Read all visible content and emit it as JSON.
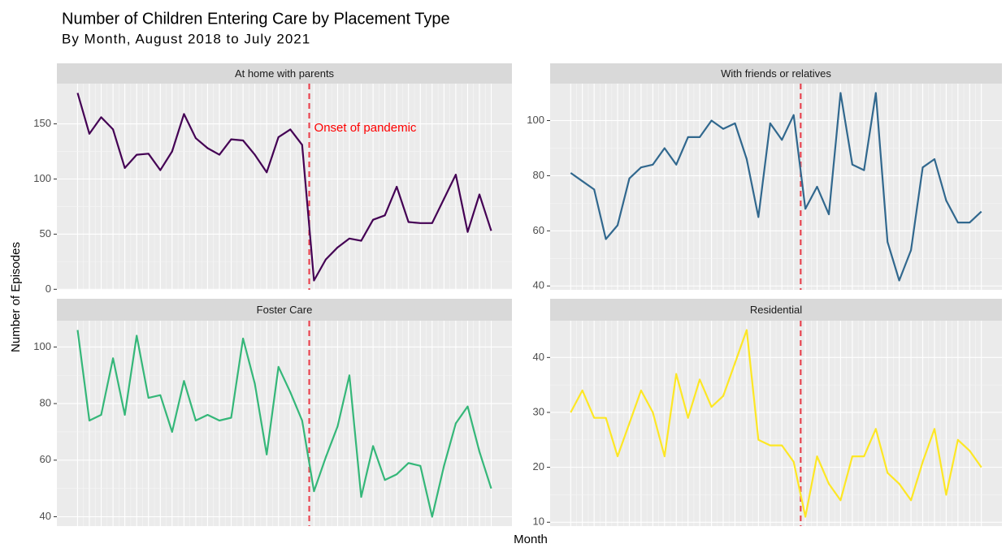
{
  "title": "Number of Children Entering Care by Placement Type",
  "subtitle": "By Month, August 2018 to July 2021",
  "xlabel": "Month",
  "ylabel": "Number of Episodes",
  "chart_data": [
    {
      "type": "line",
      "title": "At home with parents",
      "color": "#440154",
      "categories": [
        null,
        null,
        null,
        null,
        null,
        null,
        null,
        null,
        null,
        null,
        null,
        null,
        null,
        null,
        null,
        null,
        null,
        null,
        null,
        null,
        null,
        null,
        null,
        null,
        null,
        null,
        null,
        null,
        null,
        null,
        null,
        null,
        null,
        null,
        null,
        null
      ],
      "values": [
        178,
        141,
        156,
        145,
        110,
        122,
        123,
        108,
        125,
        159,
        137,
        128,
        122,
        136,
        135,
        122,
        106,
        138,
        145,
        131,
        8,
        27,
        38,
        46,
        44,
        63,
        67,
        93,
        61,
        60,
        60,
        82,
        104,
        52,
        86,
        53
      ],
      "ylim": [
        -0.5,
        186.5
      ],
      "yticks": [
        0,
        50,
        100,
        150
      ],
      "grid": true,
      "vline": 19.6,
      "vline_color": "#e8434f",
      "annotation": "Onset of pandemic",
      "annotation_color": "#ff0000"
    },
    {
      "type": "line",
      "title": "With friends or relatives",
      "color": "#31688e",
      "categories": [
        null,
        null,
        null,
        null,
        null,
        null,
        null,
        null,
        null,
        null,
        null,
        null,
        null,
        null,
        null,
        null,
        null,
        null,
        null,
        null,
        null,
        null,
        null,
        null,
        null,
        null,
        null,
        null,
        null,
        null,
        null,
        null,
        null,
        null,
        null,
        null
      ],
      "values": [
        81,
        78,
        75,
        57,
        62,
        79,
        83,
        84,
        90,
        84,
        94,
        94,
        100,
        97,
        99,
        86,
        65,
        99,
        93,
        102,
        68,
        76,
        66,
        110,
        84,
        82,
        110,
        56,
        42,
        53,
        83,
        86,
        71,
        63,
        63,
        67
      ],
      "ylim": [
        38.6,
        113.4
      ],
      "yticks": [
        40,
        60,
        80,
        100
      ],
      "grid": true,
      "vline": 19.6,
      "vline_color": "#e8434f"
    },
    {
      "type": "line",
      "title": "Foster Care",
      "color": "#35b779",
      "categories": [
        null,
        null,
        null,
        null,
        null,
        null,
        null,
        null,
        null,
        null,
        null,
        null,
        null,
        null,
        null,
        null,
        null,
        null,
        null,
        null,
        null,
        null,
        null,
        null,
        null,
        null,
        null,
        null,
        null,
        null,
        null,
        null,
        null,
        null,
        null,
        null
      ],
      "values": [
        106,
        74,
        76,
        96,
        76,
        104,
        82,
        83,
        70,
        88,
        74,
        76,
        74,
        75,
        103,
        87,
        62,
        93,
        84,
        74,
        49,
        61,
        72,
        90,
        47,
        65,
        53,
        55,
        59,
        58,
        40,
        58,
        73,
        79,
        63,
        50
      ],
      "ylim": [
        36.7,
        109.3
      ],
      "yticks": [
        40,
        60,
        80,
        100
      ],
      "grid": true,
      "vline": 19.6,
      "vline_color": "#e8434f"
    },
    {
      "type": "line",
      "title": "Residential",
      "color": "#fde725",
      "categories": [
        null,
        null,
        null,
        null,
        null,
        null,
        null,
        null,
        null,
        null,
        null,
        null,
        null,
        null,
        null,
        null,
        null,
        null,
        null,
        null,
        null,
        null,
        null,
        null,
        null,
        null,
        null,
        null,
        null,
        null,
        null,
        null,
        null,
        null,
        null,
        null
      ],
      "values": [
        30,
        34,
        29,
        29,
        22,
        28,
        34,
        30,
        22,
        37,
        29,
        36,
        31,
        33,
        39,
        45,
        25,
        24,
        24,
        21,
        11,
        22,
        17,
        14,
        22,
        22,
        27,
        19,
        17,
        14,
        21,
        27,
        15,
        25,
        23,
        20
      ],
      "ylim": [
        9.3,
        46.7
      ],
      "yticks": [
        10,
        20,
        30,
        40
      ],
      "grid": true,
      "vline": 19.6,
      "vline_color": "#e8434f"
    }
  ]
}
